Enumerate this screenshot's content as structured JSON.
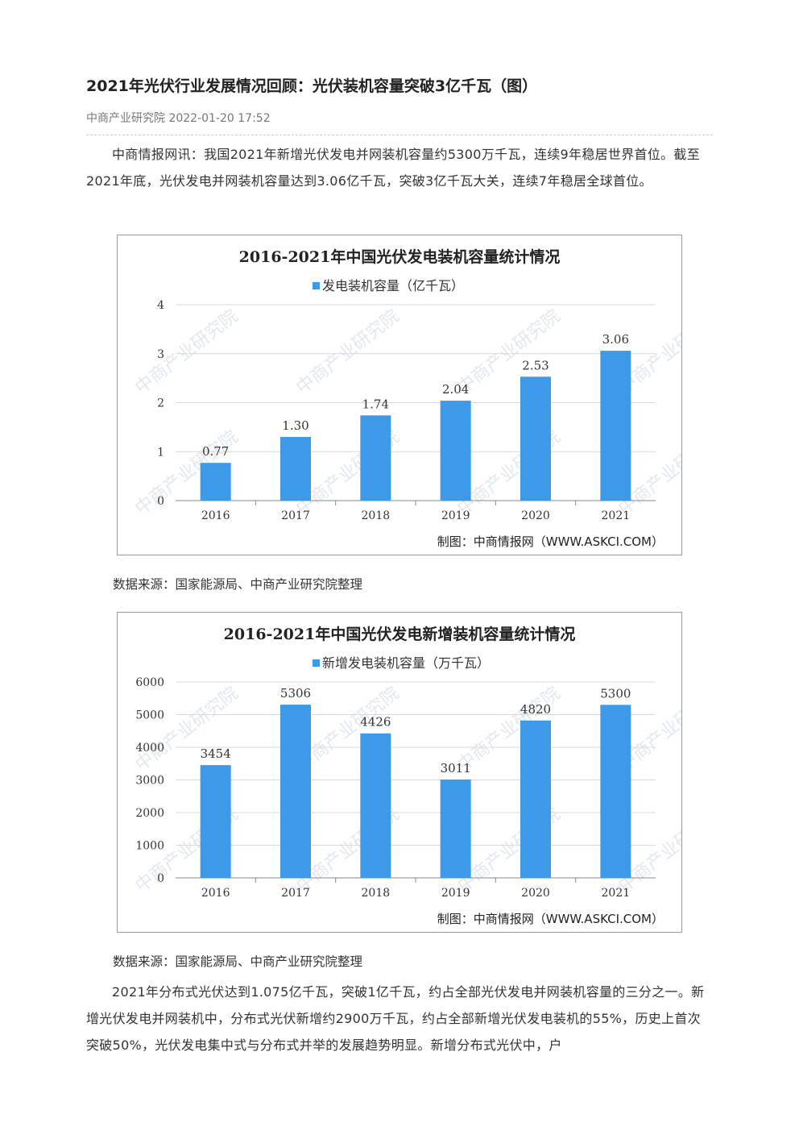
{
  "article": {
    "title": "2021年光伏行业发展情况回顾：光伏装机容量突破3亿千瓦（图）",
    "source": "中商产业研究院",
    "datetime": "2022-01-20 17:52",
    "para1": "中商情报网讯：我国2021年新增光伏发电并网装机容量约5300万千瓦，连续9年稳居世界首位。截至2021年底，光伏发电并网装机容量达到3.06亿千瓦，突破3亿千瓦大关，连续7年稳居全球首位。",
    "caption1": "数据来源：国家能源局、中商产业研究院整理",
    "caption2": "数据来源：国家能源局、中商产业研究院整理",
    "para2": "2021年分布式光伏达到1.075亿千瓦，突破1亿千瓦，约占全部光伏发电并网装机容量的三分之一。新增光伏发电并网装机中，分布式光伏新增约2900万千瓦，约占全部新增光伏发电装机的55%，历史上首次突破50%，光伏发电集中式与分布式并举的发展趋势明显。新增分布式光伏中，户"
  },
  "chart_data": [
    {
      "type": "bar",
      "title": "2016-2021年中国光伏发电装机容量统计情况",
      "categories": [
        "2016",
        "2017",
        "2018",
        "2019",
        "2020",
        "2021"
      ],
      "series": [
        {
          "name": "发电装机容量（亿千瓦）",
          "values": [
            0.77,
            1.3,
            1.74,
            2.04,
            2.53,
            3.06
          ]
        }
      ],
      "value_labels": [
        "0.77",
        "1.30",
        "1.74",
        "2.04",
        "2.53",
        "3.06"
      ],
      "y_ticks": [
        "0",
        "1",
        "2",
        "3",
        "4"
      ],
      "ylim": [
        0,
        4
      ],
      "grid": true,
      "legend": "top",
      "credit": "制图：中商情报网（WWW.ASKCI.COM）",
      "color": "#3d9ae8"
    },
    {
      "type": "bar",
      "title": "2016-2021年中国光伏发电新增装机容量统计情况",
      "categories": [
        "2016",
        "2017",
        "2018",
        "2019",
        "2020",
        "2021"
      ],
      "series": [
        {
          "name": "新增发电装机容量（万千瓦）",
          "values": [
            3454,
            5306,
            4426,
            3011,
            4820,
            5300
          ]
        }
      ],
      "value_labels": [
        "3454",
        "5306",
        "4426",
        "3011",
        "4820",
        "5300"
      ],
      "y_ticks": [
        "0",
        "1000",
        "2000",
        "3000",
        "4000",
        "5000",
        "6000"
      ],
      "ylim": [
        0,
        6000
      ],
      "grid": true,
      "legend": "top",
      "credit": "制图：中商情报网（WWW.ASKCI.COM）",
      "color": "#3d9ae8"
    }
  ],
  "watermark": {
    "text": "中商产业研究院",
    "color": "#c9d6e6"
  }
}
